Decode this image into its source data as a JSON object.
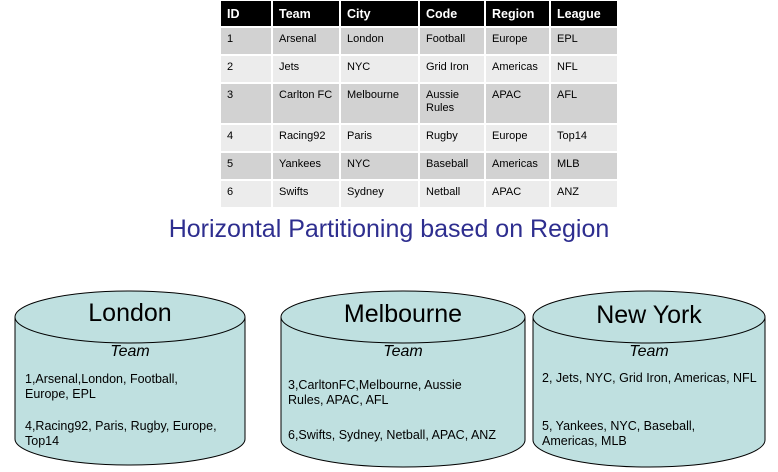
{
  "table": {
    "headers": [
      "ID",
      "Team",
      "City",
      "Code",
      "Region",
      "League"
    ],
    "rows": [
      [
        "1",
        "Arsenal",
        "London",
        "Football",
        "Europe",
        "EPL"
      ],
      [
        "2",
        "Jets",
        "NYC",
        "Grid Iron",
        "Americas",
        "NFL"
      ],
      [
        "3",
        "Carlton FC",
        "Melbourne",
        "Aussie Rules",
        "APAC",
        "AFL"
      ],
      [
        "4",
        "Racing92",
        "Paris",
        "Rugby",
        "Europe",
        "Top14"
      ],
      [
        "5",
        "Yankees",
        "NYC",
        "Baseball",
        "Americas",
        "MLB"
      ],
      [
        "6",
        "Swifts",
        "Sydney",
        "Netball",
        "APAC",
        "ANZ"
      ]
    ]
  },
  "title": "Horizontal Partitioning based on Region",
  "colors": {
    "cylinder_fill": "#bfe0e0",
    "cylinder_stroke": "#000000",
    "title": "#2e2e8f",
    "header_bg": "#000000",
    "row_dark": "#d2d2d2",
    "row_light": "#ececec"
  },
  "databases": [
    {
      "name": "London",
      "table_label": "Team",
      "records": [
        "1,Arsenal,London, Football, Europe, EPL",
        "4,Racing92, Paris, Rugby, Europe, Top14"
      ]
    },
    {
      "name": "Melbourne",
      "table_label": "Team",
      "records": [
        "3,CarltonFC,Melbourne, Aussie Rules, APAC, AFL",
        "6,Swifts, Sydney, Netball, APAC, ANZ"
      ]
    },
    {
      "name": "New York",
      "table_label": "Team",
      "records": [
        "2, Jets, NYC, Grid Iron, Americas, NFL",
        "5, Yankees, NYC, Baseball, Americas, MLB"
      ]
    }
  ]
}
